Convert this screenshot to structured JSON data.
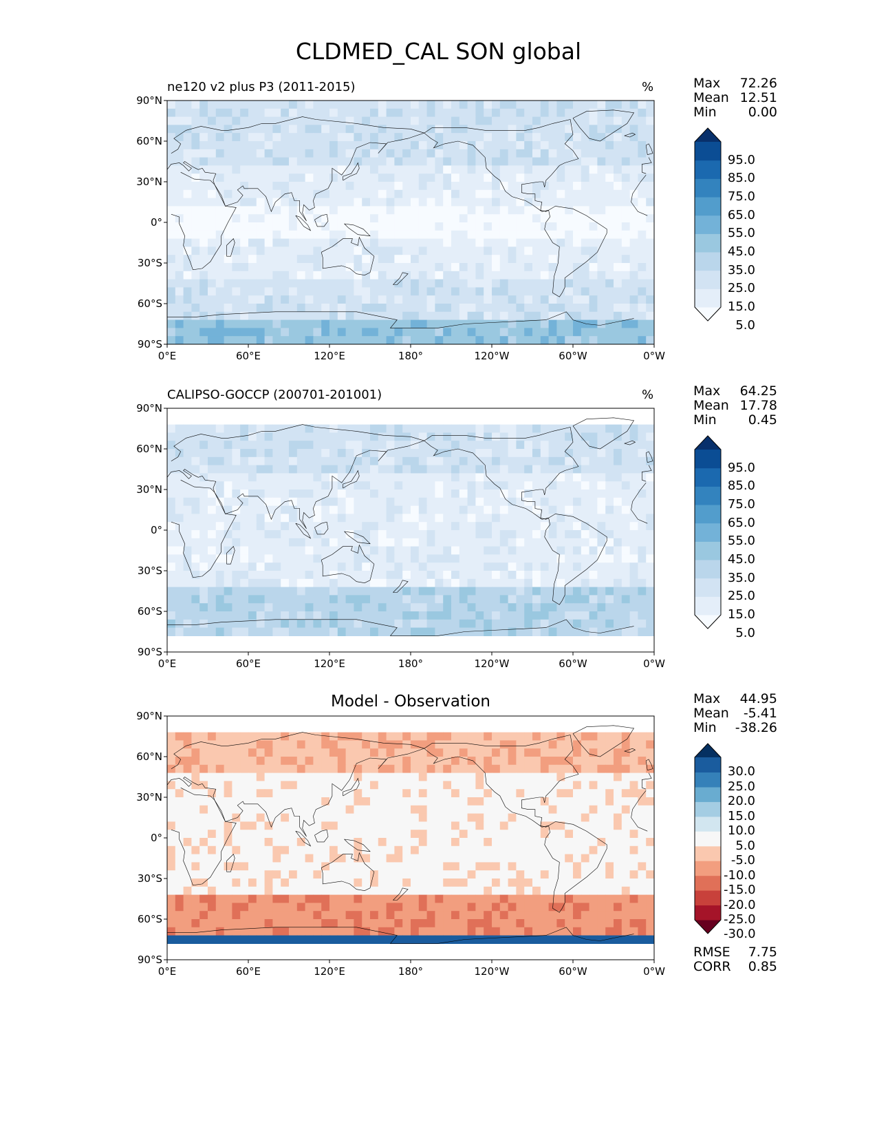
{
  "figure": {
    "title": "CLDMED_CAL SON global"
  },
  "axes": {
    "lat_ticks": [
      "90°N",
      "60°N",
      "30°N",
      "0°",
      "30°S",
      "60°S",
      "90°S"
    ],
    "lon_ticks": [
      "0°E",
      "60°E",
      "120°E",
      "180°",
      "120°W",
      "60°W",
      "0°W"
    ]
  },
  "panels": [
    {
      "id": "model",
      "title": "ne120 v2 plus P3 (2011-2015)",
      "units": "%",
      "stats": [
        {
          "label": "Max",
          "value": "72.26"
        },
        {
          "label": "Mean",
          "value": "12.51"
        },
        {
          "label": "Min",
          "value": "0.00"
        }
      ],
      "colorbar": {
        "labels": [
          "95.0",
          "85.0",
          "75.0",
          "65.0",
          "55.0",
          "45.0",
          "35.0",
          "25.0",
          "15.0",
          "5.0"
        ],
        "colors": [
          "#f7fbff",
          "#e4eef9",
          "#d2e3f3",
          "#bad6eb",
          "#9ac8e0",
          "#73b2d8",
          "#529dcc",
          "#3383be",
          "#1b69af",
          "#0b4d94",
          "#08306b"
        ]
      }
    },
    {
      "id": "obs",
      "title": "CALIPSO-GOCCP (200701-201001)",
      "units": "%",
      "stats": [
        {
          "label": "Max",
          "value": "64.25"
        },
        {
          "label": "Mean",
          "value": "17.78"
        },
        {
          "label": "Min",
          "value": "0.45"
        }
      ],
      "colorbar": {
        "labels": [
          "95.0",
          "85.0",
          "75.0",
          "65.0",
          "55.0",
          "45.0",
          "35.0",
          "25.0",
          "15.0",
          "5.0"
        ],
        "colors": [
          "#f7fbff",
          "#e4eef9",
          "#d2e3f3",
          "#bad6eb",
          "#9ac8e0",
          "#73b2d8",
          "#529dcc",
          "#3383be",
          "#1b69af",
          "#0b4d94",
          "#08306b"
        ]
      }
    },
    {
      "id": "diff",
      "title": "Model - Observation",
      "stats": [
        {
          "label": "Max",
          "value": "44.95"
        },
        {
          "label": "Mean",
          "value": "-5.41"
        },
        {
          "label": "Min",
          "value": "-38.26"
        }
      ],
      "extra_stats": [
        {
          "label": "RMSE",
          "value": "7.75"
        },
        {
          "label": "CORR",
          "value": "0.85"
        }
      ],
      "colorbar": {
        "labels": [
          "30.0",
          "25.0",
          "20.0",
          "15.0",
          "10.0",
          "5.0",
          "-5.0",
          "-10.0",
          "-15.0",
          "-20.0",
          "-25.0",
          "-30.0"
        ],
        "colors": [
          "#67001f",
          "#a51429",
          "#c8413b",
          "#e07058",
          "#f29e7f",
          "#fac8af",
          "#f7f7f7",
          "#d2e6f0",
          "#a4cde3",
          "#69acd0",
          "#3581b9",
          "#1a5c9e",
          "#053061"
        ]
      }
    }
  ]
}
